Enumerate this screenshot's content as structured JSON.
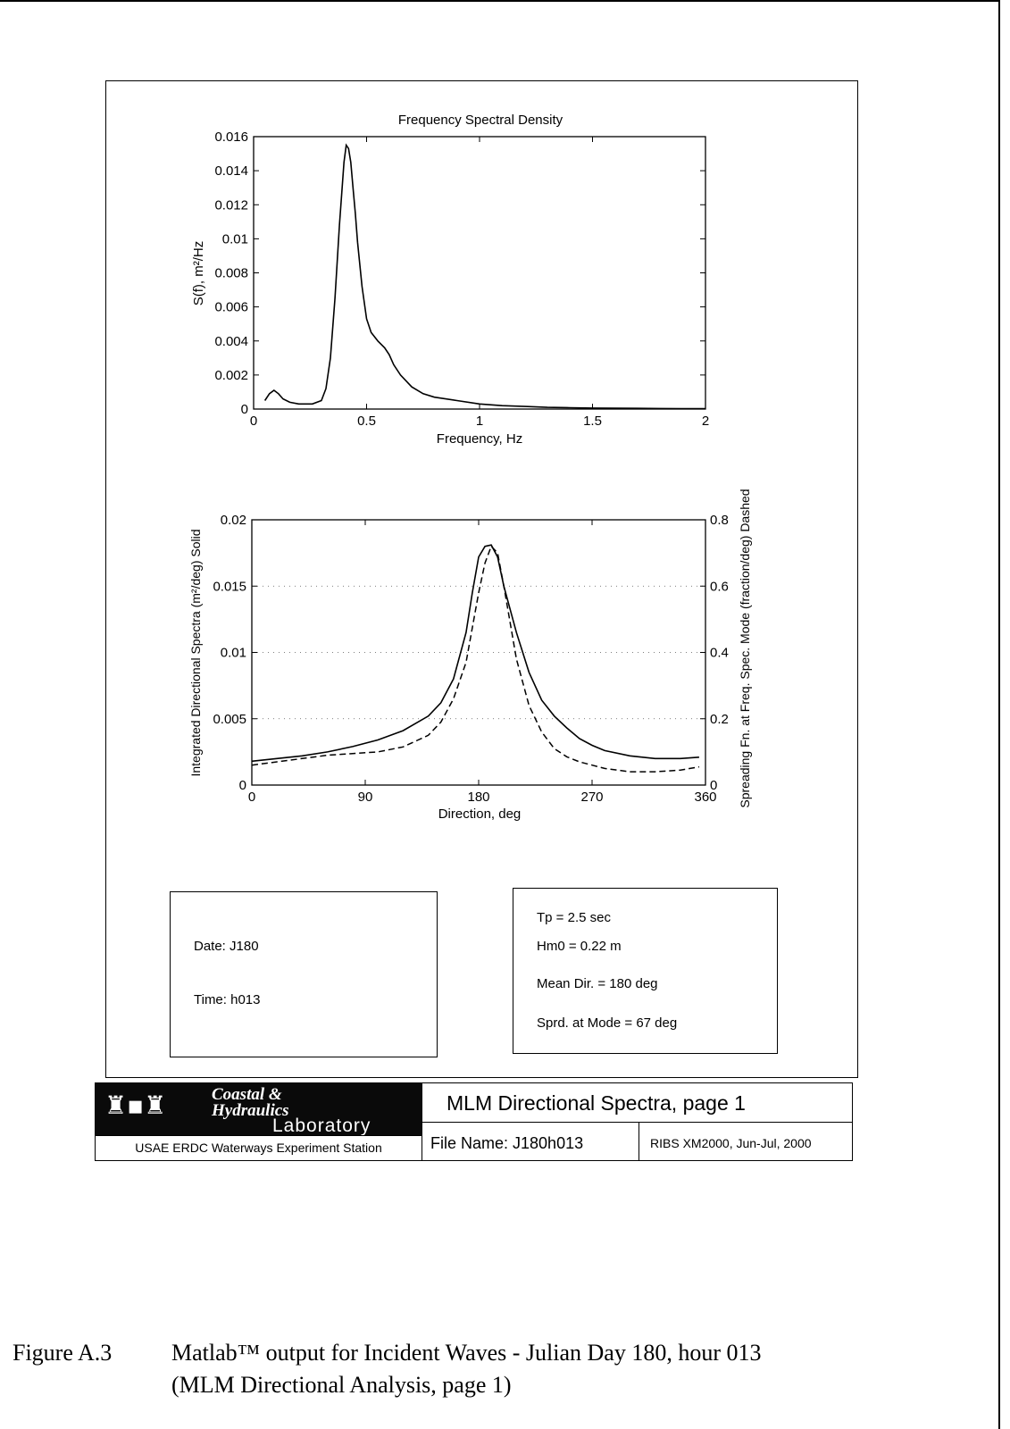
{
  "chart_data": [
    {
      "type": "line",
      "title": "Frequency Spectral Density",
      "xlabel": "Frequency, Hz",
      "ylabel": "S(f), m²/Hz",
      "xlim": [
        0,
        2
      ],
      "ylim": [
        0,
        0.016
      ],
      "xticks": [
        "0",
        "0.5",
        "1",
        "1.5",
        "2"
      ],
      "yticks": [
        "0",
        "0.002",
        "0.004",
        "0.006",
        "0.008",
        "0.01",
        "0.012",
        "0.014",
        "0.016"
      ],
      "series": [
        {
          "x": [
            0.05,
            0.07,
            0.09,
            0.11,
            0.13,
            0.16,
            0.2,
            0.26,
            0.3,
            0.32,
            0.34,
            0.36,
            0.38,
            0.4,
            0.41,
            0.42,
            0.43,
            0.44,
            0.45,
            0.46,
            0.48,
            0.5,
            0.52,
            0.55,
            0.58,
            0.6,
            0.62,
            0.65,
            0.7,
            0.75,
            0.8,
            0.9,
            1.0,
            1.1,
            1.2,
            1.3,
            1.4,
            1.5,
            1.6,
            1.7,
            1.8,
            1.9,
            2.0
          ],
          "y": [
            0.0005,
            0.0009,
            0.0011,
            0.0009,
            0.0006,
            0.0004,
            0.0003,
            0.0003,
            0.0005,
            0.0012,
            0.003,
            0.0065,
            0.0108,
            0.0145,
            0.0155,
            0.0153,
            0.0145,
            0.013,
            0.0115,
            0.0098,
            0.0072,
            0.0053,
            0.0045,
            0.004,
            0.0036,
            0.0032,
            0.0026,
            0.002,
            0.0013,
            0.0009,
            0.0007,
            0.0005,
            0.0003,
            0.0002,
            0.00015,
            0.0001,
            8e-05,
            6e-05,
            5e-05,
            4e-05,
            3e-05,
            2e-05,
            2e-05
          ]
        }
      ]
    },
    {
      "type": "line",
      "title": "",
      "xlabel": "Direction, deg",
      "ylabel": "Integrated Directional Spectra (m²/deg) Solid",
      "y2label": "Spreading Fn. at Freq. Spec. Mode (fraction/deg) Dashed",
      "xlim": [
        0,
        360
      ],
      "ylim": [
        0,
        0.02
      ],
      "y2lim": [
        0,
        0.8
      ],
      "xticks": [
        "0",
        "90",
        "180",
        "270",
        "360"
      ],
      "yticks": [
        "0",
        "0.005",
        "0.01",
        "0.015",
        "0.02"
      ],
      "y2ticks": [
        "0",
        "0.2",
        "0.4",
        "0.6",
        "0.8"
      ],
      "grid": true,
      "series": [
        {
          "axis": "left",
          "style": "solid",
          "x": [
            0,
            20,
            40,
            60,
            80,
            100,
            120,
            140,
            150,
            160,
            170,
            175,
            180,
            185,
            190,
            195,
            200,
            210,
            220,
            230,
            240,
            250,
            260,
            270,
            280,
            300,
            320,
            340,
            355
          ],
          "y": [
            0.0018,
            0.002,
            0.0022,
            0.0025,
            0.0029,
            0.0034,
            0.0041,
            0.0052,
            0.0062,
            0.008,
            0.0115,
            0.0145,
            0.0172,
            0.018,
            0.0181,
            0.0172,
            0.015,
            0.0115,
            0.0085,
            0.0064,
            0.0052,
            0.0043,
            0.0035,
            0.003,
            0.0026,
            0.0022,
            0.002,
            0.002,
            0.0021
          ]
        },
        {
          "axis": "right",
          "style": "dashed",
          "x": [
            0,
            20,
            40,
            60,
            80,
            100,
            120,
            140,
            150,
            160,
            170,
            180,
            185,
            190,
            195,
            200,
            210,
            220,
            230,
            240,
            250,
            260,
            270,
            280,
            300,
            320,
            340,
            355
          ],
          "y": [
            0.06,
            0.07,
            0.08,
            0.09,
            0.095,
            0.1,
            0.115,
            0.15,
            0.19,
            0.26,
            0.37,
            0.58,
            0.67,
            0.72,
            0.7,
            0.6,
            0.38,
            0.24,
            0.16,
            0.11,
            0.085,
            0.07,
            0.06,
            0.05,
            0.04,
            0.04,
            0.045,
            0.055
          ]
        }
      ]
    }
  ],
  "left_box": {
    "date": "Date: J180",
    "time": "Time: h013"
  },
  "right_box": {
    "tp": "Tp = 2.5 sec",
    "hm0": "Hm0 = 0.22 m",
    "mean_dir": "Mean Dir. = 180 deg",
    "spread": "Sprd. at Mode = 67 deg"
  },
  "title_block": {
    "logo_line1": "Coastal &",
    "logo_line2": "Hydraulics",
    "logo_line3": "Laboratory",
    "org": "USAE ERDC Waterways Experiment Station",
    "title": "MLM Directional Spectra, page 1",
    "file_name": "File Name: J180h013",
    "project": "RIBS XM2000, Jun-Jul, 2000"
  },
  "caption": {
    "number": "Figure A.3",
    "line1": "Matlab™ output for Incident Waves - Julian Day 180, hour 013",
    "line2": "(MLM Directional Analysis, page 1)"
  }
}
